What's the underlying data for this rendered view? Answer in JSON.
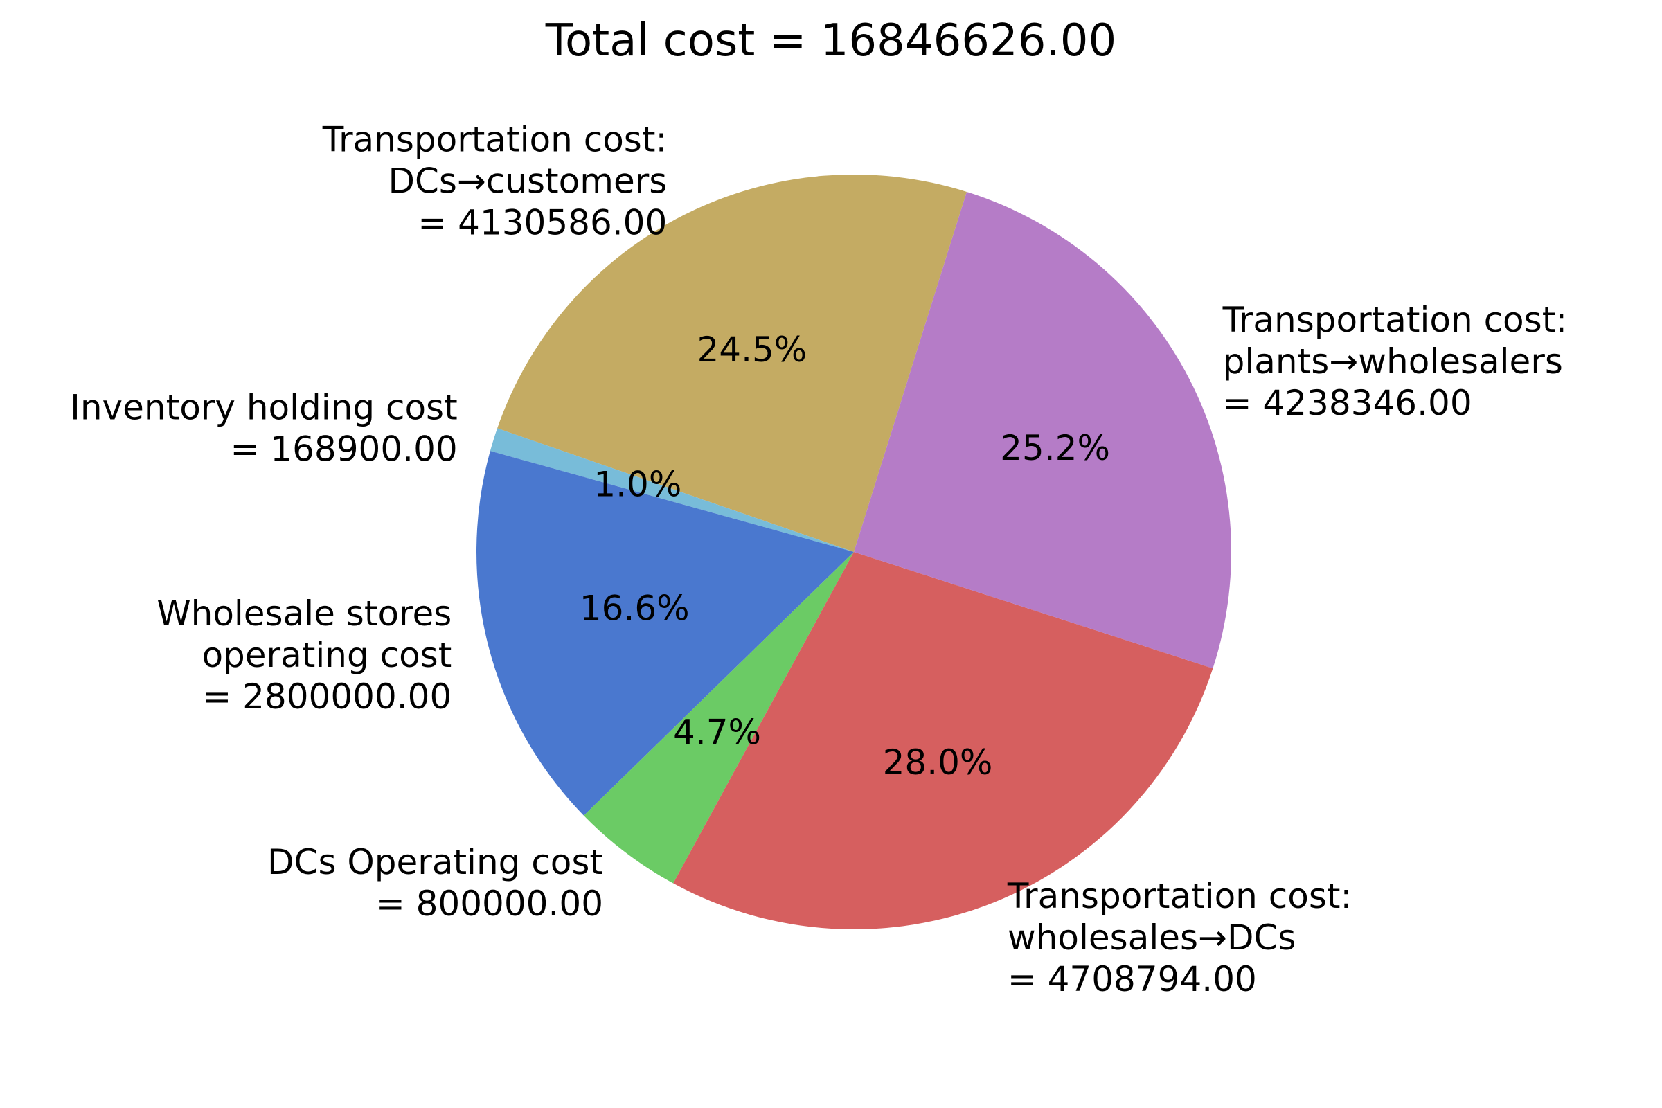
{
  "chart_data": {
    "type": "pie",
    "title": "Total cost = 16846626.00",
    "start_angle_deg": 72.6,
    "direction": "counterclockwise",
    "slices": [
      {
        "label_lines": [
          "Transportation cost:",
          "DCs→customers",
          "= 4130586.00"
        ],
        "value": 4130586.0,
        "pct_label": "24.5%",
        "color": "#c4ab63"
      },
      {
        "label_lines": [
          "Inventory holding cost",
          "= 168900.00"
        ],
        "value": 168900.0,
        "pct_label": "1.0%",
        "color": "#78bcd9"
      },
      {
        "label_lines": [
          "Wholesale stores",
          "operating cost",
          "= 2800000.00"
        ],
        "value": 2800000.0,
        "pct_label": "16.6%",
        "color": "#4a78cf"
      },
      {
        "label_lines": [
          "DCs Operating cost",
          "= 800000.00"
        ],
        "value": 800000.0,
        "pct_label": "4.7%",
        "color": "#6bcb65"
      },
      {
        "label_lines": [
          "Transportation cost:",
          "wholesales→DCs",
          "= 4708794.00"
        ],
        "value": 4708794.0,
        "pct_label": "28.0%",
        "color": "#d65f5f"
      },
      {
        "label_lines": [
          "Transportation cost:",
          "plants→wholesalers",
          "= 4238346.00"
        ],
        "value": 4238346.0,
        "pct_label": "25.2%",
        "color": "#b57cc7"
      }
    ]
  }
}
